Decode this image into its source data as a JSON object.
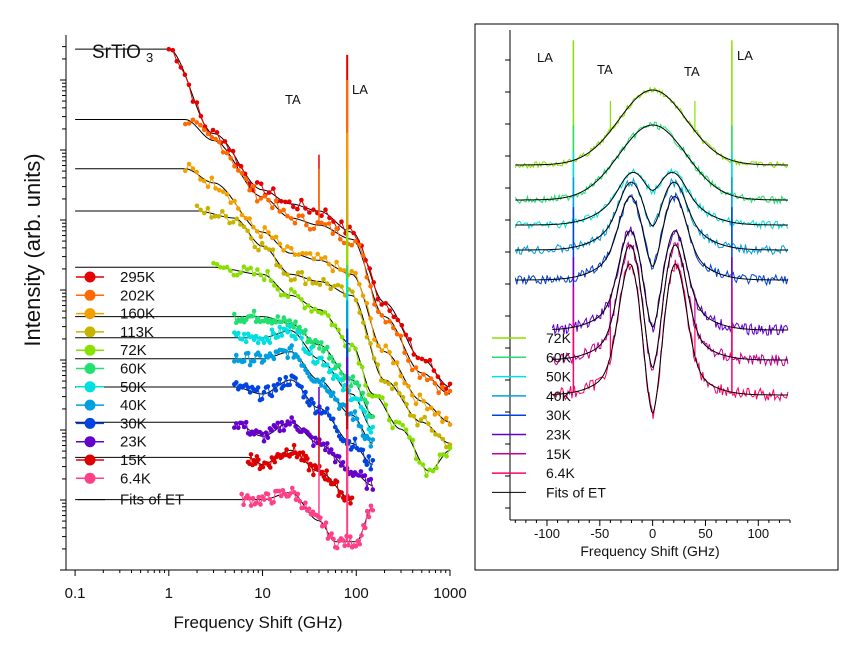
{
  "chart_data": [
    {
      "type": "scatter",
      "panel": "left",
      "title": "SrTiO",
      "title_subscript": "3",
      "xlabel": "Frequency Shift (GHz)",
      "ylabel": "Intensity (arb. units)",
      "x_scale": "log",
      "xlim": [
        0.08,
        1000
      ],
      "x_ticks": [
        "0.1",
        "1",
        "10",
        "100",
        "1000"
      ],
      "y_scale": "log, vertically offset curves",
      "annotations": [
        "TA",
        "LA"
      ],
      "legend_position": "bottom-left",
      "fit_label": "Fits of ET",
      "series": [
        {
          "name": "295K",
          "color": "#e60000",
          "points": [
            [
              1.0,
              6.2
            ],
            [
              3,
              5.0
            ],
            [
              10,
              4.2
            ],
            [
              20,
              4.0
            ],
            [
              40,
              3.9
            ],
            [
              90,
              3.6
            ],
            [
              200,
              2.6
            ],
            [
              500,
              1.8
            ],
            [
              1000,
              1.4
            ]
          ]
        },
        {
          "name": "202K",
          "color": "#ff6a00",
          "points": [
            [
              1.5,
              5.2
            ],
            [
              3,
              4.9
            ],
            [
              10,
              4.1
            ],
            [
              20,
              3.8
            ],
            [
              40,
              3.7
            ],
            [
              90,
              3.5
            ],
            [
              200,
              2.4
            ],
            [
              500,
              1.6
            ],
            [
              1000,
              1.3
            ]
          ]
        },
        {
          "name": "160K",
          "color": "#f2a000",
          "points": [
            [
              1.5,
              4.5
            ],
            [
              3,
              4.3
            ],
            [
              10,
              3.6
            ],
            [
              20,
              3.3
            ],
            [
              40,
              3.2
            ],
            [
              90,
              3.0
            ],
            [
              200,
              1.9
            ],
            [
              500,
              1.2
            ],
            [
              1000,
              0.9
            ]
          ]
        },
        {
          "name": "113K",
          "color": "#c8b400",
          "points": [
            [
              2,
              3.9
            ],
            [
              5,
              3.8
            ],
            [
              10,
              3.4
            ],
            [
              20,
              3.0
            ],
            [
              40,
              2.9
            ],
            [
              90,
              2.7
            ],
            [
              200,
              1.5
            ],
            [
              500,
              0.9
            ],
            [
              1000,
              0.6
            ]
          ]
        },
        {
          "name": "72K",
          "color": "#88e000",
          "points": [
            [
              3,
              3.1
            ],
            [
              10,
              3.0
            ],
            [
              20,
              2.7
            ],
            [
              40,
              2.5
            ],
            [
              90,
              2.0
            ],
            [
              150,
              1.3
            ],
            [
              300,
              0.8
            ],
            [
              600,
              0.2
            ],
            [
              1000,
              0.5
            ]
          ]
        },
        {
          "name": "60K",
          "color": "#22e070",
          "points": [
            [
              5,
              2.4
            ],
            [
              10,
              2.4
            ],
            [
              20,
              2.3
            ],
            [
              40,
              2.0
            ],
            [
              90,
              1.5
            ],
            [
              150,
              1.0
            ]
          ]
        },
        {
          "name": "50K",
          "color": "#00e0e0",
          "points": [
            [
              5,
              2.1
            ],
            [
              10,
              2.1
            ],
            [
              20,
              2.2
            ],
            [
              40,
              1.8
            ],
            [
              90,
              1.3
            ],
            [
              150,
              0.8
            ]
          ]
        },
        {
          "name": "40K",
          "color": "#00a0e0",
          "points": [
            [
              5,
              1.8
            ],
            [
              10,
              1.8
            ],
            [
              20,
              1.9
            ],
            [
              40,
              1.5
            ],
            [
              90,
              1.0
            ],
            [
              150,
              0.6
            ]
          ]
        },
        {
          "name": "30K",
          "color": "#0044e0",
          "points": [
            [
              5,
              1.4
            ],
            [
              10,
              1.3
            ],
            [
              20,
              1.5
            ],
            [
              40,
              1.1
            ],
            [
              90,
              0.6
            ],
            [
              150,
              0.3
            ]
          ]
        },
        {
          "name": "23K",
          "color": "#6600cc",
          "points": [
            [
              5,
              0.9
            ],
            [
              10,
              0.7
            ],
            [
              20,
              0.9
            ],
            [
              40,
              0.6
            ],
            [
              90,
              0.2
            ],
            [
              150,
              0.0
            ]
          ]
        },
        {
          "name": "15K",
          "color": "#dd0000",
          "points": [
            [
              7,
              0.4
            ],
            [
              10,
              0.3
            ],
            [
              20,
              0.5
            ],
            [
              40,
              0.2
            ],
            [
              90,
              -0.2
            ]
          ]
        },
        {
          "name": "6.4K",
          "color": "#ff4088",
          "points": [
            [
              6,
              -0.2
            ],
            [
              10,
              -0.2
            ],
            [
              20,
              -0.1
            ],
            [
              40,
              -0.5
            ],
            [
              60,
              -0.8
            ],
            [
              100,
              -0.8
            ],
            [
              150,
              -0.3
            ]
          ]
        }
      ],
      "fit_curves": [
        {
          "name": "Fits of ET",
          "color": "#000000"
        }
      ]
    },
    {
      "type": "line",
      "panel": "right",
      "xlabel": "Frequency Shift (GHz)",
      "xlim": [
        -135,
        130
      ],
      "x_ticks": [
        "-100",
        "-50",
        "0",
        "50",
        "100"
      ],
      "annotations": [
        "LA",
        "TA",
        "TA",
        "LA"
      ],
      "legend_position": "bottom-left",
      "fit_label": "Fits of ET",
      "series": [
        {
          "name": "72K",
          "color": "#88e000"
        },
        {
          "name": "60K",
          "color": "#22e070"
        },
        {
          "name": "50K",
          "color": "#00e0e0"
        },
        {
          "name": "40K",
          "color": "#00a0e0"
        },
        {
          "name": "30K",
          "color": "#0044e0"
        },
        {
          "name": "23K",
          "color": "#6600cc"
        },
        {
          "name": "15K",
          "color": "#cc0099"
        },
        {
          "name": "6.4K",
          "color": "#ff0066"
        }
      ]
    }
  ]
}
